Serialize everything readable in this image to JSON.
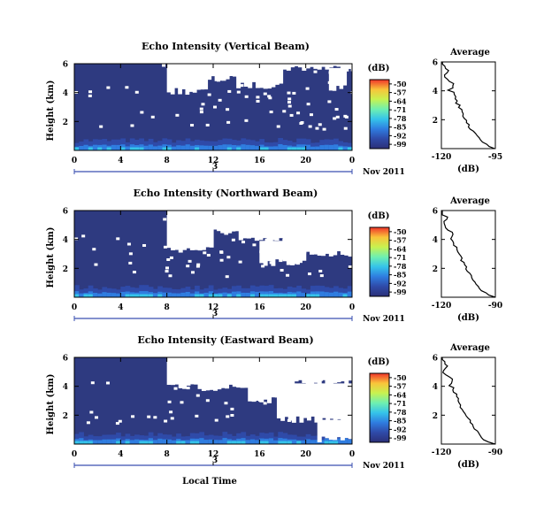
{
  "chart_data": [
    {
      "type": "heatmap",
      "title": "Echo Intensity (Vertical Beam)",
      "ylabel": "Height (km)",
      "x_ticks": [
        "0",
        "4",
        "8",
        "12",
        "16",
        "20",
        "0"
      ],
      "y_ticks": [
        "6",
        "4",
        "2"
      ],
      "day_label": "3",
      "date_label": "Nov 2011",
      "colorbar": {
        "unit": "(dB)",
        "ticks": [
          "-50",
          "-57",
          "-64",
          "-71",
          "-78",
          "-85",
          "-92",
          "-99"
        ]
      },
      "average": {
        "title": "Average",
        "xlabel": "(dB)",
        "x_ticks": [
          "-120",
          "-95"
        ],
        "y_ticks": [
          "6",
          "4",
          "2"
        ],
        "xlim": [
          -120,
          -95
        ],
        "ylim": [
          0,
          6
        ]
      }
    },
    {
      "type": "heatmap",
      "title": "Echo Intensity (Northward Beam)",
      "ylabel": "Height (km)",
      "x_ticks": [
        "0",
        "4",
        "8",
        "12",
        "16",
        "20",
        "0"
      ],
      "y_ticks": [
        "6",
        "4",
        "2"
      ],
      "day_label": "3",
      "date_label": "Nov 2011",
      "colorbar": {
        "unit": "(dB)",
        "ticks": [
          "-50",
          "-57",
          "-64",
          "-71",
          "-78",
          "-85",
          "-92",
          "-99"
        ]
      },
      "average": {
        "title": "Average",
        "xlabel": "(dB)",
        "x_ticks": [
          "-120",
          "-90"
        ],
        "y_ticks": [
          "6",
          "4",
          "2"
        ],
        "xlim": [
          -120,
          -90
        ],
        "ylim": [
          0,
          6
        ]
      }
    },
    {
      "type": "heatmap",
      "title": "Echo Intensity (Eastward Beam)",
      "ylabel": "Height (km)",
      "x_ticks": [
        "0",
        "4",
        "8",
        "12",
        "16",
        "20",
        "0"
      ],
      "y_ticks": [
        "6",
        "4",
        "2"
      ],
      "day_label": "3",
      "date_label": "Nov 2011",
      "xlabel": "Local Time",
      "colorbar": {
        "unit": "(dB)",
        "ticks": [
          "-50",
          "-57",
          "-64",
          "-71",
          "-78",
          "-85",
          "-92",
          "-99"
        ]
      },
      "average": {
        "title": "Average",
        "xlabel": "(dB)",
        "x_ticks": [
          "-120",
          "-90"
        ],
        "y_ticks": [
          "6",
          "4",
          "2"
        ],
        "xlim": [
          -120,
          -90
        ],
        "ylim": [
          0,
          6
        ]
      }
    }
  ],
  "colors": {
    "background": "#2e3a80",
    "colormap": [
      "#2b2f78",
      "#2f4aa8",
      "#2f7de0",
      "#35c4ea",
      "#6ff0b0",
      "#c8f250",
      "#f9c43a",
      "#f0342a"
    ]
  }
}
